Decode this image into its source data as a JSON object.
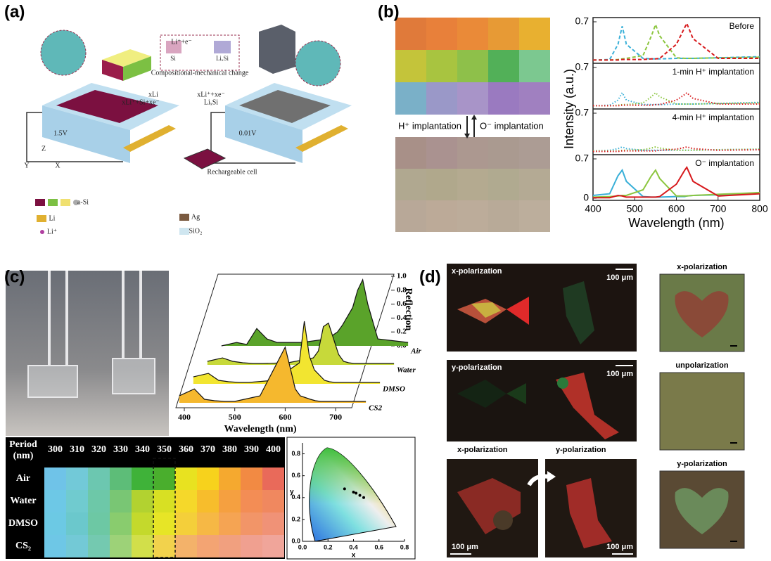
{
  "panels": {
    "a": {
      "label": "(a)",
      "texts": [
        "Li⁺+e⁻",
        "Si",
        "LiₓSi",
        "Compositional-mechanical change",
        "xLi",
        "xLi⁺+Si+xe⁻",
        "xLi⁺+xe⁻",
        "LiₓSi",
        "1.5V",
        "0.01V",
        "Rechargeable cell",
        "a-Si",
        "Li",
        "Li⁺",
        "Ag",
        "SiO₂",
        "Z",
        "Y",
        "X"
      ]
    },
    "b": {
      "label": "(b)",
      "up_label": "H⁺ implantation",
      "down_label": "O⁻ implantation"
    },
    "c": {
      "label": "(c)"
    },
    "d": {
      "label": "(d)",
      "texts": [
        "x-polarization",
        "100 μm",
        "y-polarization",
        "100 μm",
        "x-polarization",
        "y-polarization",
        "100 μm",
        "100 μm",
        "x-polarization",
        "unpolarization",
        "y-polarization"
      ]
    }
  },
  "chart_data": [
    {
      "type": "line",
      "xlabel": "Wavelength (nm)",
      "ylabel": "Intensity (a.u.)",
      "xlim": [
        400,
        800
      ],
      "xticks": [
        400,
        500,
        600,
        700,
        800
      ],
      "x": [
        400,
        440,
        460,
        470,
        480,
        520,
        540,
        550,
        560,
        600,
        620,
        625,
        640,
        700,
        800
      ],
      "subplots": [
        {
          "title": "Before",
          "line_style": "dashed",
          "ylim": [
            0,
            0.7
          ],
          "yticks": [
            0.7
          ],
          "series": [
            {
              "color": "#3ab0d8",
              "values": [
                0.02,
                0.03,
                0.3,
                0.62,
                0.3,
                0.05,
                0.04,
                0.04,
                0.04,
                0.05,
                0.05,
                0.05,
                0.05,
                0.06,
                0.08
              ]
            },
            {
              "color": "#8cc63f",
              "values": [
                0.02,
                0.02,
                0.03,
                0.04,
                0.05,
                0.1,
                0.45,
                0.65,
                0.45,
                0.06,
                0.05,
                0.05,
                0.05,
                0.06,
                0.07
              ]
            },
            {
              "color": "#d7191c",
              "values": [
                0.02,
                0.02,
                0.02,
                0.03,
                0.03,
                0.03,
                0.04,
                0.04,
                0.05,
                0.3,
                0.6,
                0.67,
                0.4,
                0.05,
                0.05
              ]
            }
          ]
        },
        {
          "title": "1-min H⁺ implantation",
          "line_style": "dotted",
          "ylim": [
            0,
            0.7
          ],
          "yticks": [
            0.7
          ],
          "series": [
            {
              "color": "#3ab0d8",
              "values": [
                0.02,
                0.03,
                0.12,
                0.25,
                0.12,
                0.04,
                0.04,
                0.04,
                0.04,
                0.05,
                0.05,
                0.05,
                0.05,
                0.06,
                0.08
              ]
            },
            {
              "color": "#8cc63f",
              "values": [
                0.02,
                0.02,
                0.03,
                0.04,
                0.04,
                0.07,
                0.18,
                0.25,
                0.18,
                0.05,
                0.05,
                0.05,
                0.05,
                0.06,
                0.07
              ]
            },
            {
              "color": "#d7191c",
              "values": [
                0.02,
                0.02,
                0.02,
                0.03,
                0.03,
                0.03,
                0.03,
                0.04,
                0.04,
                0.12,
                0.22,
                0.25,
                0.15,
                0.05,
                0.05
              ]
            }
          ]
        },
        {
          "title": "4-min H⁺ implantation",
          "line_style": "dotted",
          "ylim": [
            0,
            0.7
          ],
          "yticks": [
            0.7
          ],
          "series": [
            {
              "color": "#3ab0d8",
              "values": [
                0.03,
                0.04,
                0.07,
                0.1,
                0.07,
                0.04,
                0.04,
                0.04,
                0.04,
                0.04,
                0.04,
                0.04,
                0.04,
                0.05,
                0.06
              ]
            },
            {
              "color": "#8cc63f",
              "values": [
                0.03,
                0.03,
                0.03,
                0.04,
                0.04,
                0.05,
                0.08,
                0.1,
                0.08,
                0.04,
                0.04,
                0.04,
                0.04,
                0.05,
                0.06
              ]
            },
            {
              "color": "#d7191c",
              "values": [
                0.02,
                0.02,
                0.02,
                0.03,
                0.03,
                0.03,
                0.03,
                0.03,
                0.04,
                0.06,
                0.09,
                0.1,
                0.07,
                0.04,
                0.05
              ]
            }
          ]
        },
        {
          "title": "O⁻ implantation",
          "line_style": "solid",
          "ylim": [
            0,
            0.7
          ],
          "yticks": [
            0,
            0.7
          ],
          "series": [
            {
              "color": "#3ab0d8",
              "values": [
                0.05,
                0.08,
                0.4,
                0.5,
                0.3,
                0.03,
                0.02,
                0.02,
                0.02,
                0.03,
                0.03,
                0.04,
                0.05,
                0.06,
                0.1
              ]
            },
            {
              "color": "#8cc63f",
              "values": [
                0.02,
                0.03,
                0.04,
                0.05,
                0.05,
                0.15,
                0.4,
                0.5,
                0.35,
                0.04,
                0.04,
                0.04,
                0.05,
                0.07,
                0.1
              ]
            },
            {
              "color": "#d7191c",
              "values": [
                0.01,
                0.01,
                0.05,
                0.04,
                0.02,
                0.02,
                0.02,
                0.02,
                0.03,
                0.25,
                0.5,
                0.55,
                0.3,
                0.04,
                0.08
              ]
            }
          ]
        }
      ]
    },
    {
      "type": "area3d",
      "xlabel": "Wavelength (nm)",
      "ylabel": "Reflection",
      "xlim": [
        390,
        770
      ],
      "xticks": [
        400,
        500,
        600,
        700
      ],
      "ylim": [
        0,
        1
      ],
      "yticks": [
        {
          "value": 0,
          "label": "0.0"
        },
        0.2,
        0.4,
        0.6,
        0.8,
        {
          "value": 1,
          "label": "1.0"
        }
      ],
      "x": [
        390,
        420,
        440,
        460,
        480,
        500,
        550,
        600,
        610,
        620,
        630,
        650,
        660,
        670,
        680,
        700,
        760
      ],
      "series": [
        {
          "name": "Air",
          "color": "#5aa32a",
          "values": [
            0,
            0.05,
            0.02,
            0.25,
            0.1,
            0.05,
            0.05,
            0.1,
            0.15,
            0.2,
            0.3,
            0.55,
            0.8,
            0.95,
            0.6,
            0.1,
            0.05
          ]
        },
        {
          "name": "Water",
          "color": "#c7d93a",
          "values": [
            0.05,
            0.1,
            0.05,
            0.03,
            0.02,
            0.02,
            0.03,
            0.1,
            0.2,
            0.55,
            0.6,
            0.15,
            0.05,
            0.03,
            0.02,
            0.02,
            0.02
          ]
        },
        {
          "name": "DMSO",
          "color": "#f2e530",
          "values": [
            0.1,
            0.15,
            0.05,
            0.03,
            0.02,
            0.02,
            0.05,
            0.3,
            0.9,
            0.4,
            0.2,
            0.05,
            0.03,
            0.02,
            0.02,
            0.02,
            0.02
          ]
        },
        {
          "name": "CS2",
          "color": "#f5b82e",
          "values": [
            0.1,
            0.2,
            0.05,
            0.03,
            0.02,
            0.02,
            0.1,
            0.8,
            0.5,
            0.2,
            0.1,
            0.05,
            0.03,
            0.02,
            0.02,
            0.02,
            0.02
          ]
        }
      ]
    },
    {
      "type": "scatter",
      "xlabel": "x",
      "ylabel": "y",
      "xlim": [
        0,
        0.8
      ],
      "ylim": [
        0,
        0.9
      ],
      "xticks": [
        {
          "value": 0,
          "label": "0.0"
        },
        0.2,
        0.4,
        0.6,
        0.8
      ],
      "yticks": [
        {
          "value": 0,
          "label": "0.0"
        },
        0.2,
        0.4,
        0.6,
        0.8
      ],
      "x": [
        0.33,
        0.4,
        0.42,
        0.45,
        0.48
      ],
      "values": [
        0.48,
        0.45,
        0.44,
        0.42,
        0.4
      ],
      "color": "#000000"
    }
  ],
  "table": {
    "period_label": [
      "Period",
      "(nm)"
    ],
    "columns": [
      "300",
      "310",
      "320",
      "330",
      "340",
      "350",
      "360",
      "370",
      "380",
      "390",
      "400"
    ],
    "rows": [
      "Air",
      "Water",
      "DMSO",
      "CS₂"
    ],
    "cell_colors": [
      [
        "#6fc3e8",
        "#72c9d8",
        "#6cc7b0",
        "#5dbd78",
        "#3fb239",
        "#4aae2d",
        "#e8e220",
        "#f7d21c",
        "#f5a92f",
        "#f28a43",
        "#e96a5a"
      ],
      [
        "#6dc8e6",
        "#70cbcf",
        "#6dc8a8",
        "#79c674",
        "#b2d230",
        "#d8e023",
        "#f5d82a",
        "#f7bd2c",
        "#f5a040",
        "#f38d55",
        "#f0885f"
      ],
      [
        "#6cc9e4",
        "#6bc8cc",
        "#6dc8a4",
        "#89cc6e",
        "#c4d92c",
        "#e7e526",
        "#f4cf3a",
        "#f6b845",
        "#f5a453",
        "#f29568",
        "#f09277"
      ],
      [
        "#6ec7e6",
        "#73c9d6",
        "#74c9b0",
        "#9dd278",
        "#d2df4a",
        "#f2d24c",
        "#f3b26a",
        "#f3a473",
        "#f1a07f",
        "#f0a090",
        "#f0a59a"
      ]
    ]
  }
}
